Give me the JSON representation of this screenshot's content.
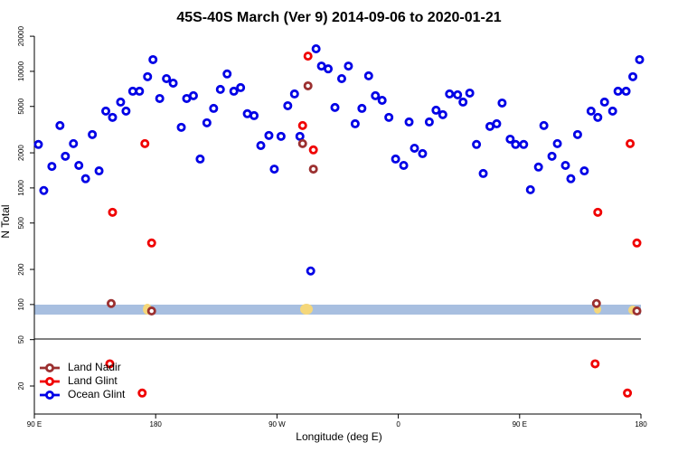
{
  "chart_data": {
    "type": "scatter",
    "title": "45S-40S March (Ver 9)   2014-09-06 to 2020-01-21",
    "x_label": "Longitude (deg E)",
    "y_label": "N Total",
    "log_y": true,
    "legend": "bottom-left",
    "xlim": [
      90,
      540
    ],
    "xticks": [
      {
        "value": 90,
        "label": "90 E"
      },
      180,
      {
        "value": 270,
        "label": "90 W"
      },
      {
        "value": 360,
        "label": "0"
      },
      {
        "value": 450,
        "label": "90 E"
      },
      {
        "value": 540,
        "label": "180"
      }
    ],
    "ylim": [
      11.5,
      22700
    ],
    "yticks": [
      20,
      50,
      100,
      200,
      500,
      1000,
      2000,
      5000,
      10000,
      20000
    ],
    "series": [
      {
        "name": "Land Nadir",
        "color": "#9b3030",
        "x": [
          147,
          177,
          289,
          293,
          297,
          507,
          537
        ],
        "values": [
          102,
          88,
          2400,
          7510,
          1450,
          102,
          88
        ]
      },
      {
        "name": "Land Glint",
        "color": "#f00000",
        "x": [
          148,
          172,
          177,
          146,
          170,
          289,
          293,
          297,
          506,
          508,
          532,
          537,
          530
        ],
        "values": [
          618,
          2400,
          337,
          31,
          17.4,
          3430,
          13500,
          2120,
          31,
          618,
          2400,
          337,
          17.4
        ]
      },
      {
        "name": "Ocean Glint",
        "color": "#0000e6",
        "x": [
          93,
          97,
          103,
          109,
          113,
          119,
          123,
          128,
          133,
          138,
          143,
          148,
          154,
          158,
          163,
          168,
          174,
          178,
          183,
          188,
          193,
          199,
          203,
          208,
          213,
          218,
          223,
          228,
          233,
          238,
          243,
          248,
          253,
          258,
          264,
          268,
          273,
          278,
          283,
          287,
          295,
          299,
          303,
          308,
          313,
          318,
          323,
          328,
          333,
          338,
          343,
          348,
          353,
          358,
          364,
          368,
          372,
          378,
          383,
          388,
          393,
          398,
          404,
          408,
          413,
          418,
          423,
          428,
          433,
          437,
          443,
          447,
          453,
          458,
          464,
          468,
          474,
          478,
          484,
          488,
          493,
          498,
          503,
          508,
          513,
          519,
          523,
          529,
          534,
          539
        ],
        "values": [
          2360,
          950,
          1530,
          3430,
          1870,
          2400,
          1560,
          1200,
          2870,
          1400,
          4560,
          4030,
          5450,
          4560,
          6750,
          6750,
          9000,
          12600,
          5850,
          8660,
          7920,
          3310,
          5850,
          6180,
          1770,
          3620,
          4810,
          7000,
          9500,
          6750,
          7250,
          4330,
          4170,
          2310,
          2820,
          1450,
          2770,
          5070,
          6400,
          2770,
          194,
          15600,
          11100,
          10500,
          4900,
          8660,
          11100,
          3550,
          4810,
          9150,
          6180,
          5640,
          4030,
          1770,
          1560,
          3680,
          2190,
          1970,
          3680,
          4640,
          4250,
          6400,
          6290,
          5450,
          6510,
          2360,
          1330,
          3370,
          3550,
          5350,
          2620,
          2360,
          2360,
          965,
          1510,
          3430,
          1870,
          2400,
          1560,
          1200,
          2870,
          1400,
          4560,
          4030,
          5450,
          4560,
          6750,
          6750,
          9000,
          12600
        ]
      }
    ]
  }
}
